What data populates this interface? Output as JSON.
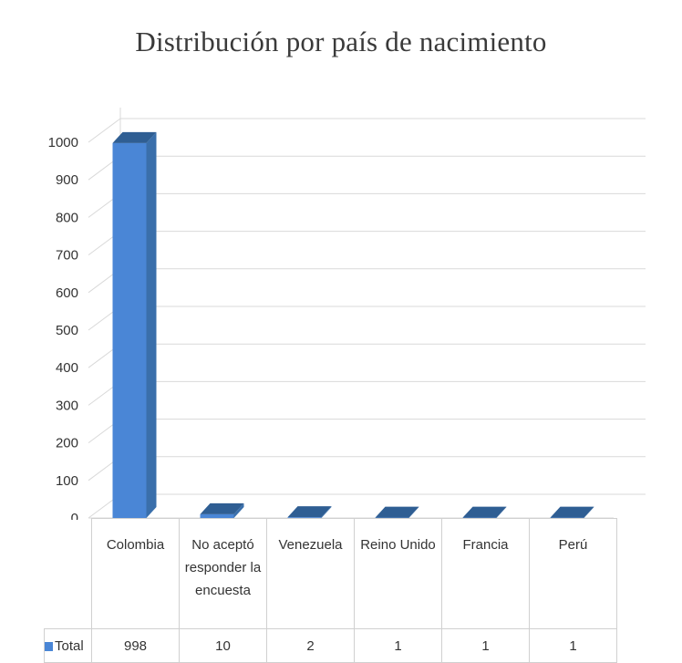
{
  "chart_data": {
    "type": "bar",
    "title": "Distribución por país de nacimiento",
    "categories": [
      "Colombia",
      "No aceptó responder la encuesta",
      "Venezuela",
      "Reino Unido",
      "Francia",
      "Perú"
    ],
    "category_lines": [
      [
        "Colombia"
      ],
      [
        "No aceptó",
        "responder la",
        "encuesta"
      ],
      [
        "Venezuela"
      ],
      [
        "Reino Unido"
      ],
      [
        "Francia"
      ],
      [
        "Perú"
      ]
    ],
    "series": [
      {
        "name": "Total",
        "values": [
          998,
          10,
          2,
          1,
          1,
          1
        ],
        "color": "#4a86d6"
      }
    ],
    "value_labels": [
      "998",
      "10",
      "2",
      "1",
      "1",
      "1"
    ],
    "ylim": [
      0,
      1000
    ],
    "yticks": [
      "0",
      "100",
      "200",
      "300",
      "400",
      "500",
      "600",
      "700",
      "800",
      "900",
      "1000"
    ],
    "grid": true,
    "three_d": true,
    "data_table": true,
    "colors": {
      "bar_front": "#4a86d6",
      "bar_top": "#2f5e93",
      "bar_side": "#3a6fab",
      "grid": "#d9d9d9"
    }
  }
}
